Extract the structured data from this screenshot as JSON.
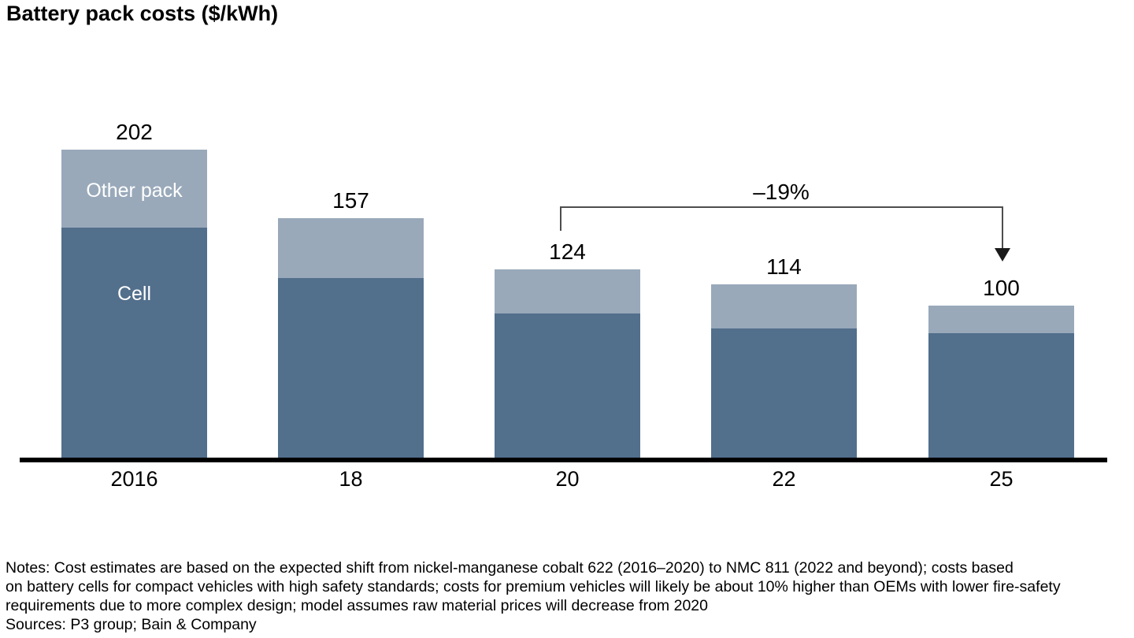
{
  "title": "Battery pack costs ($/kWh)",
  "chart_data": {
    "type": "bar",
    "stacked": true,
    "title": "Battery pack costs ($/kWh)",
    "xlabel": "",
    "ylabel": "$/kWh",
    "grid": false,
    "legend_position": "inside-first-bar",
    "categories": [
      "2016",
      "18",
      "20",
      "22",
      "25"
    ],
    "series": [
      {
        "name": "Cell",
        "color": "#526f8c",
        "values": [
          151,
          118,
          95,
          85,
          82
        ]
      },
      {
        "name": "Other pack",
        "color": "#99a9ba",
        "values": [
          51,
          39,
          29,
          29,
          18
        ]
      }
    ],
    "totals": [
      202,
      157,
      124,
      114,
      100
    ],
    "total_labels": [
      "202",
      "157",
      "124",
      "114",
      "100"
    ],
    "ylim": [
      0,
      210
    ],
    "annotation": {
      "label": "–19%",
      "from_category": "20",
      "to_category": "25",
      "style": "bracket-with-arrow"
    }
  },
  "legend": {
    "other_pack": "Other pack",
    "cell": "Cell"
  },
  "annotation_label": "–19%",
  "notes": {
    "line1": "Notes: Cost estimates are based on the expected shift from nickel-manganese cobalt 622 (2016–2020) to NMC 811 (2022 and beyond); costs based",
    "line2": "on battery cells for compact vehicles with high safety standards; costs for premium vehicles will likely be about 10% higher than OEMs with lower fire-safety",
    "line3": "requirements due to more complex design; model assumes raw material prices will decrease from 2020",
    "sources": "Sources: P3 group; Bain & Company"
  },
  "colors": {
    "cell": "#526f8c",
    "other_pack": "#99a9ba",
    "axis": "#000000",
    "annotation_line": "#4d4d4d",
    "annotation_arrow": "#1a1a1a"
  }
}
